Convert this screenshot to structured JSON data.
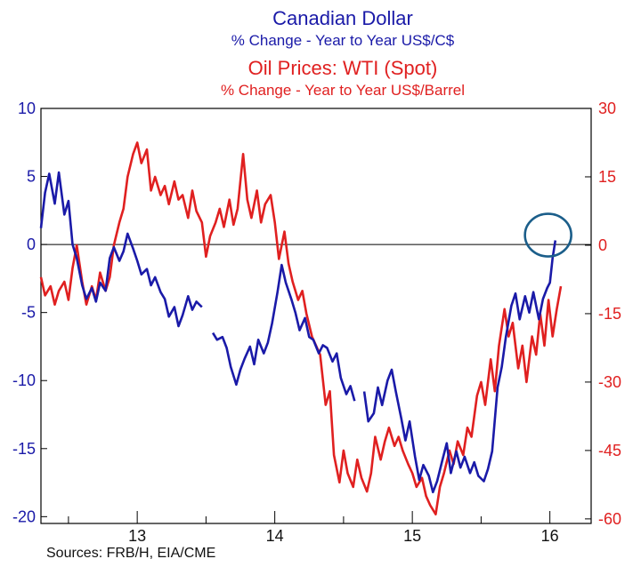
{
  "chart_data": {
    "type": "line",
    "title_primary": "Canadian Dollar",
    "subtitle_primary": "% Change - Year to Year    US$/C$",
    "title_secondary": "Oil Prices: WTI (Spot)",
    "subtitle_secondary": "% Change - Year to Year    US$/Barrel",
    "source": "Sources:  FRB/H, EIA/CME",
    "x_range": [
      2012.3,
      2016.3
    ],
    "x_ticks": [
      {
        "value": 2013,
        "label": "13"
      },
      {
        "value": 2014,
        "label": "14"
      },
      {
        "value": 2015,
        "label": "15"
      },
      {
        "value": 2016,
        "label": "16"
      }
    ],
    "left_axis": {
      "range": [
        -20.5,
        10
      ],
      "ticks": [
        10,
        5,
        0,
        -5,
        -10,
        -15,
        -20
      ],
      "color": "#1a1aa8"
    },
    "right_axis": {
      "range": [
        -61,
        30
      ],
      "ticks": [
        30,
        15,
        0,
        -15,
        -30,
        -45,
        -60
      ],
      "color": "#e02020"
    },
    "zero_line": true,
    "grid": false,
    "highlight_circle": {
      "x": 2016.0,
      "y_left": 0.3
    },
    "series": [
      {
        "name": "Canadian Dollar",
        "axis": "left",
        "color": "#1a1aa8",
        "points": [
          [
            2012.3,
            1.2
          ],
          [
            2012.33,
            3.8
          ],
          [
            2012.36,
            5.2
          ],
          [
            2012.4,
            3.0
          ],
          [
            2012.43,
            5.3
          ],
          [
            2012.47,
            2.2
          ],
          [
            2012.5,
            3.2
          ],
          [
            2012.53,
            0.0
          ],
          [
            2012.56,
            -1.0
          ],
          [
            2012.6,
            -3.0
          ],
          [
            2012.63,
            -4.0
          ],
          [
            2012.67,
            -3.2
          ],
          [
            2012.7,
            -4.2
          ],
          [
            2012.73,
            -2.8
          ],
          [
            2012.77,
            -3.4
          ],
          [
            2012.8,
            -1.0
          ],
          [
            2012.83,
            -0.2
          ],
          [
            2012.87,
            -1.2
          ],
          [
            2012.9,
            -0.5
          ],
          [
            2012.93,
            0.8
          ],
          [
            2012.97,
            -0.3
          ],
          [
            2013.0,
            -1.2
          ],
          [
            2013.03,
            -2.2
          ],
          [
            2013.07,
            -1.8
          ],
          [
            2013.1,
            -3.0
          ],
          [
            2013.13,
            -2.4
          ],
          [
            2013.17,
            -3.5
          ],
          [
            2013.2,
            -4.0
          ],
          [
            2013.23,
            -5.3
          ],
          [
            2013.27,
            -4.6
          ],
          [
            2013.3,
            -6.0
          ],
          [
            2013.33,
            -5.2
          ],
          [
            2013.37,
            -3.8
          ],
          [
            2013.4,
            -4.8
          ],
          [
            2013.43,
            -4.2
          ],
          [
            2013.47,
            -4.6
          ],
          [
            2013.55,
            -6.5
          ],
          [
            2013.58,
            -7.0
          ],
          [
            2013.62,
            -6.8
          ],
          [
            2013.65,
            -7.6
          ],
          [
            2013.68,
            -9.0
          ],
          [
            2013.72,
            -10.3
          ],
          [
            2013.75,
            -9.2
          ],
          [
            2013.78,
            -8.4
          ],
          [
            2013.82,
            -7.5
          ],
          [
            2013.85,
            -8.8
          ],
          [
            2013.88,
            -7.0
          ],
          [
            2013.92,
            -8.0
          ],
          [
            2013.95,
            -7.2
          ],
          [
            2013.98,
            -5.8
          ],
          [
            2014.02,
            -3.5
          ],
          [
            2014.05,
            -1.5
          ],
          [
            2014.08,
            -2.8
          ],
          [
            2014.12,
            -4.0
          ],
          [
            2014.15,
            -5.0
          ],
          [
            2014.18,
            -6.3
          ],
          [
            2014.22,
            -5.4
          ],
          [
            2014.25,
            -6.8
          ],
          [
            2014.28,
            -7.0
          ],
          [
            2014.32,
            -8.0
          ],
          [
            2014.35,
            -7.4
          ],
          [
            2014.38,
            -7.6
          ],
          [
            2014.42,
            -8.6
          ],
          [
            2014.45,
            -8.0
          ],
          [
            2014.48,
            -9.8
          ],
          [
            2014.52,
            -11.0
          ],
          [
            2014.55,
            -10.4
          ],
          [
            2014.58,
            -11.5
          ],
          [
            2014.65,
            -10.8
          ],
          [
            2014.68,
            -13.0
          ],
          [
            2014.72,
            -12.4
          ],
          [
            2014.75,
            -10.5
          ],
          [
            2014.78,
            -11.8
          ],
          [
            2014.82,
            -10.0
          ],
          [
            2014.85,
            -9.2
          ],
          [
            2014.88,
            -10.8
          ],
          [
            2014.92,
            -12.8
          ],
          [
            2014.95,
            -14.4
          ],
          [
            2014.98,
            -13.0
          ],
          [
            2015.02,
            -15.6
          ],
          [
            2015.05,
            -17.3
          ],
          [
            2015.08,
            -16.2
          ],
          [
            2015.12,
            -17.0
          ],
          [
            2015.15,
            -18.2
          ],
          [
            2015.18,
            -17.4
          ],
          [
            2015.22,
            -15.8
          ],
          [
            2015.25,
            -14.6
          ],
          [
            2015.28,
            -16.8
          ],
          [
            2015.32,
            -15.2
          ],
          [
            2015.35,
            -16.4
          ],
          [
            2015.38,
            -15.6
          ],
          [
            2015.42,
            -16.8
          ],
          [
            2015.45,
            -16.0
          ],
          [
            2015.48,
            -17.0
          ],
          [
            2015.52,
            -17.4
          ],
          [
            2015.55,
            -16.5
          ],
          [
            2015.58,
            -15.2
          ],
          [
            2015.62,
            -10.5
          ],
          [
            2015.65,
            -9.0
          ],
          [
            2015.68,
            -6.8
          ],
          [
            2015.72,
            -4.5
          ],
          [
            2015.75,
            -3.6
          ],
          [
            2015.78,
            -5.5
          ],
          [
            2015.82,
            -3.8
          ],
          [
            2015.85,
            -5.0
          ],
          [
            2015.88,
            -3.5
          ],
          [
            2015.92,
            -5.5
          ],
          [
            2015.95,
            -4.0
          ],
          [
            2015.98,
            -3.2
          ],
          [
            2016.0,
            -2.8
          ],
          [
            2016.02,
            -1.0
          ],
          [
            2016.04,
            0.3
          ]
        ]
      },
      {
        "name": "Oil Prices: WTI (Spot)",
        "axis": "right",
        "color": "#e02020",
        "points": [
          [
            2012.3,
            -7.0
          ],
          [
            2012.33,
            -11.0
          ],
          [
            2012.37,
            -9.0
          ],
          [
            2012.4,
            -13.0
          ],
          [
            2012.43,
            -10.0
          ],
          [
            2012.47,
            -8.0
          ],
          [
            2012.5,
            -12.0
          ],
          [
            2012.53,
            -5.0
          ],
          [
            2012.56,
            0.0
          ],
          [
            2012.6,
            -8.0
          ],
          [
            2012.63,
            -13.0
          ],
          [
            2012.67,
            -9.0
          ],
          [
            2012.7,
            -12.0
          ],
          [
            2012.73,
            -6.0
          ],
          [
            2012.77,
            -10.0
          ],
          [
            2012.8,
            -7.0
          ],
          [
            2012.83,
            0.0
          ],
          [
            2012.87,
            5.0
          ],
          [
            2012.9,
            8.0
          ],
          [
            2012.93,
            15.0
          ],
          [
            2012.97,
            20.0
          ],
          [
            2013.0,
            22.5
          ],
          [
            2013.03,
            18.0
          ],
          [
            2013.07,
            21.0
          ],
          [
            2013.1,
            12.0
          ],
          [
            2013.13,
            15.0
          ],
          [
            2013.17,
            11.0
          ],
          [
            2013.2,
            13.0
          ],
          [
            2013.23,
            9.0
          ],
          [
            2013.27,
            14.0
          ],
          [
            2013.3,
            10.0
          ],
          [
            2013.33,
            11.0
          ],
          [
            2013.37,
            6.0
          ],
          [
            2013.4,
            12.0
          ],
          [
            2013.43,
            7.5
          ],
          [
            2013.47,
            5.0
          ],
          [
            2013.5,
            -2.5
          ],
          [
            2013.53,
            2.0
          ],
          [
            2013.57,
            5.0
          ],
          [
            2013.6,
            8.0
          ],
          [
            2013.63,
            4.0
          ],
          [
            2013.67,
            10.0
          ],
          [
            2013.7,
            4.5
          ],
          [
            2013.73,
            8.0
          ],
          [
            2013.77,
            20.0
          ],
          [
            2013.8,
            10.0
          ],
          [
            2013.83,
            6.0
          ],
          [
            2013.87,
            12.0
          ],
          [
            2013.9,
            5.0
          ],
          [
            2013.93,
            9.0
          ],
          [
            2013.97,
            11.0
          ],
          [
            2014.0,
            5.0
          ],
          [
            2014.03,
            -3.0
          ],
          [
            2014.07,
            3.0
          ],
          [
            2014.1,
            -4.0
          ],
          [
            2014.13,
            -8.0
          ],
          [
            2014.17,
            -12.0
          ],
          [
            2014.2,
            -10.0
          ],
          [
            2014.23,
            -15.0
          ],
          [
            2014.27,
            -20.0
          ],
          [
            2014.3,
            -22.0
          ],
          [
            2014.33,
            -24.0
          ],
          [
            2014.37,
            -35.0
          ],
          [
            2014.4,
            -32.0
          ],
          [
            2014.43,
            -46.0
          ],
          [
            2014.47,
            -52.0
          ],
          [
            2014.5,
            -45.0
          ],
          [
            2014.53,
            -50.0
          ],
          [
            2014.57,
            -53.0
          ],
          [
            2014.6,
            -47.0
          ],
          [
            2014.63,
            -51.0
          ],
          [
            2014.67,
            -54.0
          ],
          [
            2014.7,
            -50.0
          ],
          [
            2014.73,
            -42.0
          ],
          [
            2014.77,
            -47.0
          ],
          [
            2014.8,
            -43.0
          ],
          [
            2014.83,
            -40.0
          ],
          [
            2014.87,
            -44.0
          ],
          [
            2014.9,
            -42.0
          ],
          [
            2014.93,
            -45.0
          ],
          [
            2014.97,
            -48.0
          ],
          [
            2015.0,
            -50.0
          ],
          [
            2015.03,
            -53.0
          ],
          [
            2015.07,
            -51.0
          ],
          [
            2015.1,
            -55.0
          ],
          [
            2015.13,
            -57.0
          ],
          [
            2015.17,
            -59.0
          ],
          [
            2015.2,
            -53.0
          ],
          [
            2015.23,
            -50.0
          ],
          [
            2015.27,
            -45.0
          ],
          [
            2015.3,
            -48.0
          ],
          [
            2015.33,
            -43.0
          ],
          [
            2015.37,
            -46.0
          ],
          [
            2015.4,
            -40.0
          ],
          [
            2015.43,
            -42.0
          ],
          [
            2015.47,
            -33.0
          ],
          [
            2015.5,
            -30.0
          ],
          [
            2015.53,
            -35.0
          ],
          [
            2015.57,
            -25.0
          ],
          [
            2015.6,
            -32.0
          ],
          [
            2015.63,
            -22.0
          ],
          [
            2015.67,
            -14.0
          ],
          [
            2015.7,
            -20.0
          ],
          [
            2015.73,
            -17.0
          ],
          [
            2015.77,
            -27.0
          ],
          [
            2015.8,
            -22.0
          ],
          [
            2015.83,
            -30.0
          ],
          [
            2015.87,
            -20.0
          ],
          [
            2015.9,
            -24.0
          ],
          [
            2015.93,
            -15.0
          ],
          [
            2015.96,
            -22.0
          ],
          [
            2015.99,
            -12.0
          ],
          [
            2016.02,
            -20.0
          ],
          [
            2016.05,
            -14.0
          ],
          [
            2016.08,
            -9.0
          ]
        ]
      }
    ]
  }
}
